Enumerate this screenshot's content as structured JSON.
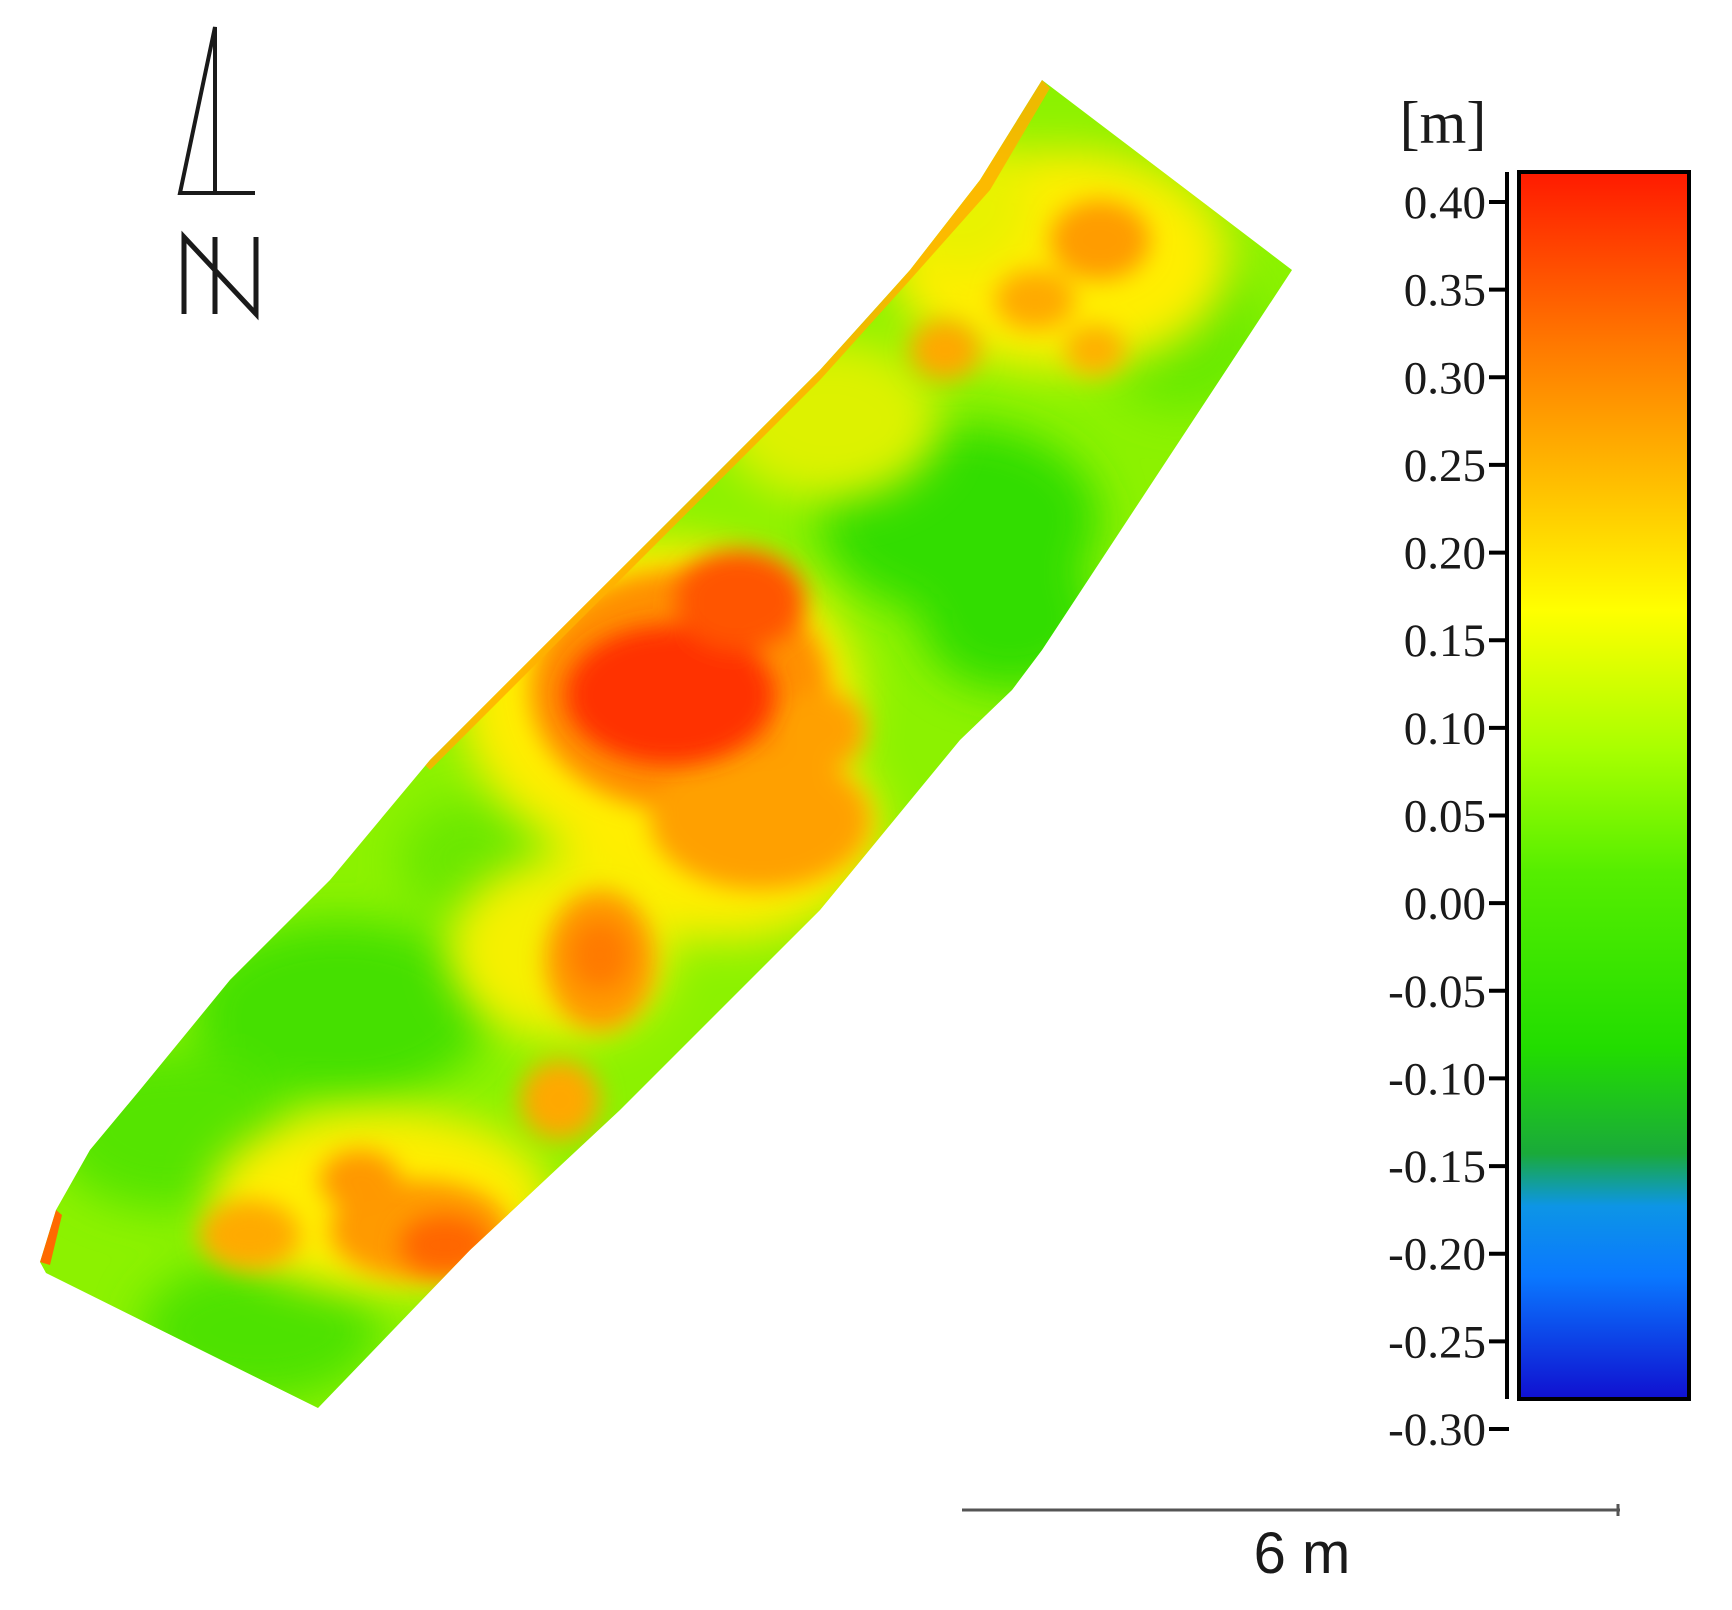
{
  "legend": {
    "unit": "[m]",
    "ticks": [
      "0.40",
      "0.35",
      "0.30",
      "0.25",
      "0.20",
      "0.15",
      "0.10",
      "0.05",
      "0.00",
      "-0.05",
      "-0.10",
      "-0.15",
      "-0.20",
      "-0.25",
      "-0.30"
    ],
    "min": -0.3,
    "max": 0.4,
    "gradient_stops": [
      {
        "value": 0.4,
        "color": "#ff1a00"
      },
      {
        "value": 0.3,
        "color": "#ff7a00"
      },
      {
        "value": 0.22,
        "color": "#ffc000"
      },
      {
        "value": 0.15,
        "color": "#ffff00"
      },
      {
        "value": 0.07,
        "color": "#a8ff00"
      },
      {
        "value": 0.0,
        "color": "#55ee00"
      },
      {
        "value": -0.1,
        "color": "#22dd00"
      },
      {
        "value": -0.16,
        "color": "#1aaa3a"
      },
      {
        "value": -0.19,
        "color": "#0d95e6"
      },
      {
        "value": -0.23,
        "color": "#0a78ff"
      },
      {
        "value": -0.3,
        "color": "#1010d0"
      }
    ]
  },
  "scale_bar": {
    "label": "6 m"
  },
  "north_arrow": {
    "label": "N",
    "icon": "north-arrow-icon"
  },
  "surface_colors": {
    "base": "#8cf200",
    "high": "#ff3300",
    "medium_high": "#ff9000",
    "mid": "#ffee00",
    "low": "#33dd00"
  }
}
